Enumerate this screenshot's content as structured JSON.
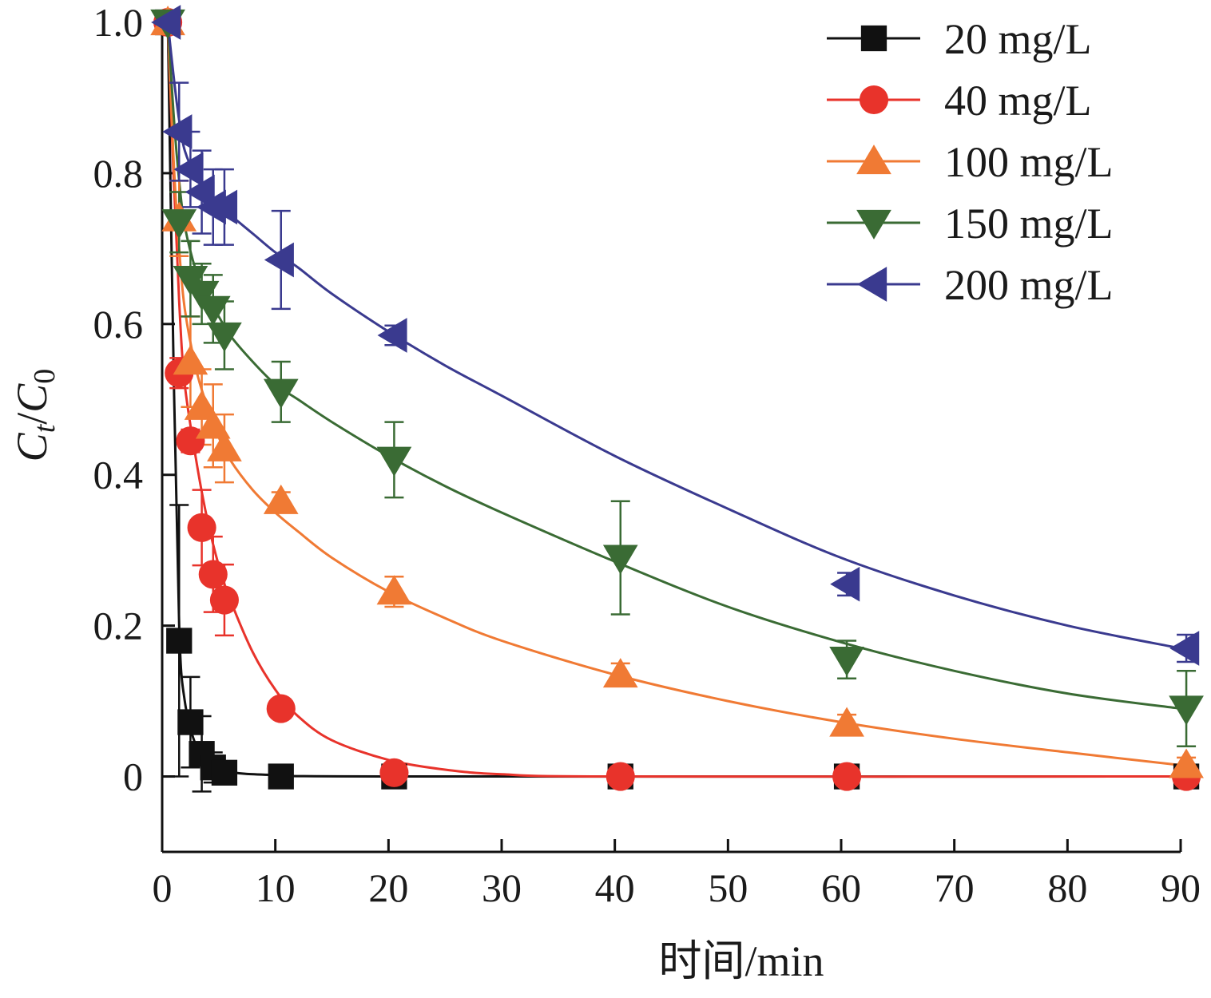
{
  "chart_data": {
    "type": "line",
    "xlabel": "时间/min",
    "ylabel": {
      "main": "C",
      "sub1": "t",
      "slash": "/",
      "main2": "C",
      "sub2": "0"
    },
    "xlim": [
      0,
      90
    ],
    "ylim": [
      -0.1,
      1.0
    ],
    "xticks": [
      "0",
      "10",
      "20",
      "30",
      "40",
      "50",
      "60",
      "70",
      "80",
      "90"
    ],
    "yticks": [
      "0",
      "0.2",
      "0.4",
      "0.6",
      "0.8",
      "1.0"
    ],
    "legend_position": "top-right",
    "grid": false,
    "series": [
      {
        "name": "20 mg/L",
        "color": "#111111",
        "marker": "square",
        "points": [
          [
            0.5,
            1.0
          ],
          [
            1.5,
            0.18
          ],
          [
            2.5,
            0.072
          ],
          [
            3.5,
            0.03
          ],
          [
            4.5,
            0.012
          ],
          [
            5.5,
            0.005
          ],
          [
            10.5,
            0.0
          ],
          [
            20.5,
            0.0
          ],
          [
            40.5,
            0.0
          ],
          [
            60.5,
            0.0
          ],
          [
            90.5,
            0.0
          ]
        ],
        "errors": [
          0.0,
          0.18,
          0.06,
          0.05,
          0.02,
          0.01,
          0.005,
          0.005,
          0.0,
          0.0,
          0.0
        ],
        "fit": [
          [
            0.5,
            1.0
          ],
          [
            1.0,
            0.55
          ],
          [
            1.5,
            0.2
          ],
          [
            2.0,
            0.1
          ],
          [
            3.0,
            0.04
          ],
          [
            4.0,
            0.018
          ],
          [
            6.0,
            0.006
          ],
          [
            10.0,
            0.002
          ],
          [
            20.0,
            0.0
          ],
          [
            90.0,
            0.0
          ]
        ]
      },
      {
        "name": "40 mg/L",
        "color": "#e8332b",
        "marker": "circle",
        "points": [
          [
            0.5,
            1.0
          ],
          [
            1.5,
            0.535
          ],
          [
            2.5,
            0.445
          ],
          [
            3.5,
            0.33
          ],
          [
            4.5,
            0.268
          ],
          [
            5.5,
            0.234
          ],
          [
            10.5,
            0.09
          ],
          [
            20.5,
            0.005
          ],
          [
            40.5,
            0.0
          ],
          [
            60.5,
            0.0
          ],
          [
            90.5,
            0.0
          ]
        ],
        "errors": [
          0.0,
          0.02,
          0.015,
          0.05,
          0.05,
          0.047,
          0.012,
          0.01,
          0.004,
          0.004,
          0.004
        ],
        "fit": [
          [
            0.5,
            1.0
          ],
          [
            1.0,
            0.8
          ],
          [
            1.5,
            0.63
          ],
          [
            2.0,
            0.52
          ],
          [
            3.0,
            0.42
          ],
          [
            4.0,
            0.34
          ],
          [
            5.0,
            0.28
          ],
          [
            6.0,
            0.235
          ],
          [
            8.0,
            0.165
          ],
          [
            10.0,
            0.115
          ],
          [
            12.0,
            0.08
          ],
          [
            15.0,
            0.048
          ],
          [
            20.0,
            0.022
          ],
          [
            25.0,
            0.009
          ],
          [
            30.0,
            0.003
          ],
          [
            40.0,
            0.0
          ],
          [
            90.0,
            0.0
          ]
        ]
      },
      {
        "name": "100 mg/L",
        "color": "#f07a34",
        "marker": "triangle-up",
        "points": [
          [
            0.5,
            1.0
          ],
          [
            1.5,
            0.74
          ],
          [
            2.5,
            0.55
          ],
          [
            3.5,
            0.49
          ],
          [
            4.5,
            0.465
          ],
          [
            5.5,
            0.435
          ],
          [
            10.5,
            0.365
          ],
          [
            20.5,
            0.245
          ],
          [
            40.5,
            0.135
          ],
          [
            60.5,
            0.07
          ],
          [
            90.5,
            0.015
          ]
        ],
        "errors": [
          0.0,
          0.05,
          0.06,
          0.05,
          0.055,
          0.045,
          0.012,
          0.02,
          0.015,
          0.012,
          0.01
        ],
        "fit": [
          [
            0.5,
            1.0
          ],
          [
            1.0,
            0.82
          ],
          [
            1.5,
            0.7
          ],
          [
            2.0,
            0.62
          ],
          [
            3.0,
            0.54
          ],
          [
            4.0,
            0.49
          ],
          [
            5.0,
            0.45
          ],
          [
            6.0,
            0.42
          ],
          [
            8.0,
            0.38
          ],
          [
            10.0,
            0.35
          ],
          [
            12.0,
            0.325
          ],
          [
            15.0,
            0.29
          ],
          [
            20.0,
            0.245
          ],
          [
            25.0,
            0.21
          ],
          [
            30.0,
            0.18
          ],
          [
            40.0,
            0.135
          ],
          [
            50.0,
            0.1
          ],
          [
            60.0,
            0.072
          ],
          [
            70.0,
            0.05
          ],
          [
            80.0,
            0.032
          ],
          [
            90.0,
            0.015
          ]
        ]
      },
      {
        "name": "150 mg/L",
        "color": "#3a6b34",
        "marker": "triangle-down",
        "points": [
          [
            0.5,
            1.0
          ],
          [
            1.5,
            0.735
          ],
          [
            2.5,
            0.66
          ],
          [
            3.5,
            0.64
          ],
          [
            4.5,
            0.62
          ],
          [
            5.5,
            0.585
          ],
          [
            10.5,
            0.51
          ],
          [
            20.5,
            0.42
          ],
          [
            40.5,
            0.29
          ],
          [
            60.5,
            0.155
          ],
          [
            90.5,
            0.09
          ]
        ],
        "errors": [
          0.0,
          0.04,
          0.05,
          0.04,
          0.045,
          0.045,
          0.04,
          0.05,
          0.075,
          0.025,
          0.05
        ],
        "fit": [
          [
            0.5,
            1.0
          ],
          [
            1.0,
            0.88
          ],
          [
            1.5,
            0.79
          ],
          [
            2.0,
            0.73
          ],
          [
            3.0,
            0.67
          ],
          [
            4.0,
            0.635
          ],
          [
            5.0,
            0.61
          ],
          [
            6.0,
            0.585
          ],
          [
            8.0,
            0.55
          ],
          [
            10.0,
            0.52
          ],
          [
            12.0,
            0.5
          ],
          [
            15.0,
            0.47
          ],
          [
            20.0,
            0.425
          ],
          [
            25.0,
            0.385
          ],
          [
            30.0,
            0.35
          ],
          [
            40.0,
            0.285
          ],
          [
            50.0,
            0.225
          ],
          [
            60.0,
            0.178
          ],
          [
            70.0,
            0.14
          ],
          [
            80.0,
            0.11
          ],
          [
            90.0,
            0.09
          ]
        ]
      },
      {
        "name": "200 mg/L",
        "color": "#3a3a8f",
        "marker": "triangle-left",
        "points": [
          [
            0.5,
            1.0
          ],
          [
            1.5,
            0.855
          ],
          [
            2.5,
            0.805
          ],
          [
            3.5,
            0.775
          ],
          [
            4.5,
            0.755
          ],
          [
            5.5,
            0.755
          ],
          [
            10.5,
            0.685
          ],
          [
            20.5,
            0.585
          ],
          [
            60.5,
            0.255
          ],
          [
            90.5,
            0.17
          ]
        ],
        "errors": [
          0.0,
          0.065,
          0.05,
          0.055,
          0.05,
          0.05,
          0.065,
          0.013,
          0.015,
          0.018
        ],
        "fit": [
          [
            0.5,
            1.0
          ],
          [
            1.0,
            0.93
          ],
          [
            1.5,
            0.87
          ],
          [
            2.0,
            0.83
          ],
          [
            3.0,
            0.795
          ],
          [
            4.0,
            0.775
          ],
          [
            5.0,
            0.76
          ],
          [
            6.0,
            0.745
          ],
          [
            8.0,
            0.72
          ],
          [
            10.0,
            0.695
          ],
          [
            12.0,
            0.675
          ],
          [
            15.0,
            0.64
          ],
          [
            20.0,
            0.59
          ],
          [
            25.0,
            0.545
          ],
          [
            30.0,
            0.505
          ],
          [
            40.0,
            0.425
          ],
          [
            50.0,
            0.355
          ],
          [
            60.0,
            0.29
          ],
          [
            70.0,
            0.24
          ],
          [
            80.0,
            0.2
          ],
          [
            90.0,
            0.17
          ]
        ]
      }
    ]
  }
}
